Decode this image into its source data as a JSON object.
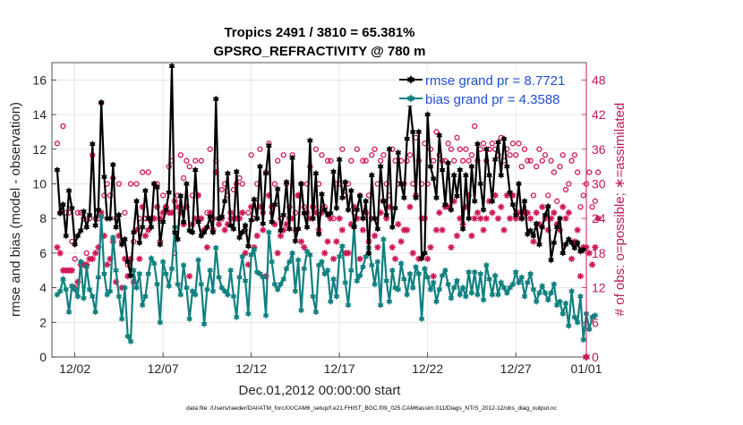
{
  "title_line1": "Tropics 2491 / 3810 = 65.381%",
  "title_line2": "GPSRO_REFRACTIVITY @ 780 m",
  "footer": "data file: /Users/raeder/DAI/ATM_forcXX/CAM6_setup/f.e21.FHIST_BGC.f09_025.CAM6assim.011/Diags_NTrS_2012-12/obs_diag_output.nc",
  "chart_data": {
    "type": "line",
    "title": "Tropics 2491 / 3810 = 65.381%",
    "subtitle": "GPSRO_REFRACTIVITY @ 780 m",
    "xlabel": "Dec.01,2012 00:00:00 start",
    "ylabel": "rmse and bias (model - observation)",
    "ylabel_right": "# of obs: o=possible; ∗=assimilated",
    "xlim": [
      0.7,
      31.0
    ],
    "ylim": [
      0,
      17
    ],
    "ylim_right": [
      0,
      51
    ],
    "x_tick_values": [
      2,
      7,
      12,
      17,
      22,
      27,
      31
    ],
    "x_tick_labels": [
      "12/02",
      "12/07",
      "12/12",
      "12/17",
      "12/22",
      "12/27",
      "01/01"
    ],
    "y_ticks": [
      0,
      2,
      4,
      6,
      8,
      10,
      12,
      14,
      16
    ],
    "y_ticks_right": [
      0,
      6,
      12,
      18,
      24,
      30,
      36,
      42,
      48
    ],
    "grid": true,
    "legend_position": "top-right",
    "colors": {
      "rmse": "#000000",
      "bias": "#118080",
      "obs": "#d1175a",
      "right_axis": "#c2185b",
      "legend_text": "#1f4fd6"
    },
    "series": [
      {
        "name": "rmse grand pr = 8.7721",
        "axis": "left",
        "marker": "hexagram",
        "values": [
          10.8,
          8.3,
          8.8,
          7.0,
          9.6,
          8.6,
          6.5,
          7.0,
          7.3,
          8.4,
          7.5,
          8.2,
          12.3,
          7.6,
          8.5,
          14.7,
          10.4,
          8.0,
          8.0,
          11.1,
          7.5,
          8.2,
          6.5,
          6.8,
          5.5,
          4.7,
          7.2,
          9.0,
          6.6,
          7.5,
          9.6,
          8.0,
          7.5,
          10.0,
          9.8,
          6.5,
          7.8,
          8.5,
          9.5,
          16.8,
          7.2,
          6.8,
          9.3,
          7.8,
          10.0,
          7.3,
          7.2,
          10.8,
          7.8,
          7.0,
          7.2,
          7.5,
          8.1,
          7.2,
          14.9,
          8.0,
          8.1,
          9.0,
          10.6,
          7.6,
          7.4,
          10.7,
          6.9,
          7.2,
          7.6,
          6.4,
          7.9,
          9.1,
          8.0,
          11.0,
          7.7,
          10.6,
          12.2,
          7.8,
          8.8,
          9.7,
          7.3,
          8.2,
          10.1,
          7.4,
          11.5,
          6.7,
          7.4,
          10.0,
          8.3,
          7.5,
          12.5,
          8.0,
          10.6,
          7.1,
          9.4,
          8.5,
          8.2,
          8.3,
          10.7,
          8.6,
          11.4,
          9.2,
          10.1,
          8.5,
          9.6,
          7.5,
          8.5,
          9.3,
          8.0,
          9.0,
          6.0,
          10.5,
          8.0,
          7.4,
          11.0,
          9.0,
          8.2,
          12.0,
          7.5,
          8.6,
          11.8,
          10.0,
          9.2,
          12.6,
          14.6,
          13.0,
          9.2,
          13.0,
          5.7,
          6.0,
          14.0,
          11.0,
          10.3,
          9.2,
          12.8,
          10.8,
          8.8,
          11.2,
          8.5,
          10.5,
          9.3,
          10.8,
          7.4,
          10.5,
          8.0,
          11.0,
          9.0,
          12.3,
          10.0,
          8.5,
          12.0,
          10.5,
          9.0,
          11.4,
          12.4,
          10.5,
          12.6,
          11.0,
          9.5,
          8.8,
          8.2,
          10.0,
          8.0,
          9.0,
          7.1,
          7.3,
          7.0,
          7.7,
          6.5,
          7.5,
          8.2,
          8.7,
          5.6,
          6.6,
          7.5,
          8.0,
          6.0,
          6.5,
          6.8,
          6.6,
          6.3,
          6.6,
          6.1,
          6.2
        ]
      },
      {
        "name": "bias grand pr = 4.3588",
        "axis": "left",
        "marker": "hexagram",
        "values": [
          3.6,
          3.8,
          4.5,
          3.9,
          2.6,
          4.1,
          3.9,
          3.5,
          5.5,
          3.4,
          5.2,
          3.9,
          3.5,
          2.6,
          4.6,
          8.1,
          4.8,
          3.6,
          3.8,
          6.9,
          5.0,
          3.5,
          2.2,
          4.0,
          1.2,
          0.9,
          5.0,
          4.0,
          4.8,
          3.0,
          3.5,
          4.8,
          5.7,
          5.4,
          4.2,
          2.0,
          5.5,
          4.8,
          4.1,
          5.1,
          7.5,
          4.2,
          3.6,
          5.3,
          4.0,
          2.2,
          3.8,
          3.6,
          5.6,
          4.2,
          1.9,
          3.9,
          5.0,
          3.8,
          6.3,
          4.6,
          4.0,
          3.8,
          3.6,
          5.0,
          3.5,
          2.3,
          4.6,
          5.8,
          4.4,
          2.5,
          5.9,
          6.2,
          4.9,
          4.8,
          4.6,
          2.4,
          7.2,
          5.5,
          4.2,
          3.9,
          4.2,
          4.5,
          5.1,
          5.5,
          6.0,
          3.8,
          5.6,
          2.7,
          5.1,
          6.1,
          5.9,
          3.5,
          2.6,
          5.3,
          5.5,
          4.8,
          5.0,
          3.2,
          4.5,
          3.5,
          5.8,
          6.4,
          4.3,
          3.0,
          5.0,
          7.6,
          4.4,
          4.7,
          5.2,
          5.8,
          6.3,
          5.3,
          4.2,
          5.5,
          3.0,
          6.8,
          4.4,
          3.2,
          5.0,
          4.0,
          3.9,
          5.4,
          4.5,
          3.6,
          4.8,
          4.0,
          5.2,
          4.8,
          2.2,
          5.1,
          4.6,
          3.9,
          4.3,
          3.2,
          3.9,
          4.7,
          5.0,
          4.2,
          3.4,
          4.0,
          4.4,
          3.6,
          4.0,
          3.5,
          4.9,
          3.7,
          4.9,
          3.6,
          4.8,
          3.3,
          5.3,
          4.5,
          3.6,
          4.7,
          3.6,
          4.3,
          4.0,
          3.7,
          4.0,
          4.2,
          4.9,
          4.3,
          4.6,
          3.5,
          4.3,
          4.8,
          3.9,
          3.2,
          3.7,
          4.1,
          3.7,
          3.3,
          3.7,
          4.2,
          3.0,
          3.2,
          2.5,
          3.1,
          1.8,
          3.8,
          2.3,
          2.0,
          3.5,
          1.0,
          2.5,
          1.6,
          2.3,
          2.4
        ]
      },
      {
        "name": "possible",
        "axis": "right",
        "marker": "circle",
        "values": [
          37,
          25,
          40,
          25,
          25,
          20,
          17,
          25,
          25,
          24,
          18,
          24,
          35,
          24,
          24,
          44,
          28,
          30,
          28,
          31,
          24,
          30,
          20,
          25,
          16,
          30,
          20,
          30,
          24,
          32,
          24,
          32,
          24,
          30,
          30,
          20,
          28,
          26,
          33,
          34,
          18,
          28,
          35,
          31,
          34,
          33,
          28,
          34,
          24,
          34,
          22,
          25,
          36,
          24,
          34,
          24,
          29,
          30,
          28,
          24,
          29,
          30,
          31,
          30,
          22,
          25,
          35,
          24,
          30,
          36,
          25,
          32,
          37,
          25,
          30,
          34,
          24,
          35,
          30,
          26,
          35,
          25,
          28,
          30,
          26,
          30,
          33,
          26,
          36,
          30,
          35,
          26,
          34,
          34,
          24,
          30,
          30,
          36,
          28,
          30,
          34,
          25,
          36,
          28,
          34,
          34,
          28,
          35,
          36,
          30,
          34,
          35,
          30,
          28,
          36,
          34,
          30,
          34,
          30,
          34,
          35,
          30,
          38,
          34,
          30,
          37,
          30,
          36,
          34,
          39,
          35,
          34,
          34,
          37,
          36,
          34,
          38,
          36,
          34,
          36,
          34,
          35,
          40,
          34,
          36,
          37,
          34,
          36,
          37,
          36,
          35,
          38,
          34,
          36,
          35,
          37,
          35,
          37,
          33,
          36,
          34,
          34,
          28,
          33,
          36,
          34,
          35,
          28,
          34,
          32,
          27,
          33,
          35,
          29,
          30,
          34,
          35,
          32,
          26,
          28,
          30,
          32,
          26,
          27,
          32
        ]
      },
      {
        "name": "assimilated",
        "axis": "right",
        "marker": "asterisk",
        "values": [
          19,
          18,
          15,
          15,
          15,
          15,
          12,
          13,
          16,
          16,
          16,
          17,
          17,
          18,
          19,
          25,
          21,
          16,
          17,
          20,
          13,
          21,
          12,
          17,
          14,
          17,
          13,
          22,
          17,
          26,
          21,
          22,
          24,
          24,
          26,
          24,
          25,
          26,
          25,
          25,
          27,
          26,
          25,
          23,
          26,
          14,
          23,
          24,
          28,
          24,
          22,
          19,
          25,
          22,
          32,
          23,
          24,
          22,
          23,
          25,
          24,
          24,
          24,
          25,
          18,
          16,
          26,
          19,
          21,
          26,
          22,
          14,
          28,
          26,
          23,
          18,
          21,
          22,
          23,
          24,
          24,
          22,
          28,
          20,
          19,
          25,
          24,
          26,
          25,
          22,
          25,
          18,
          20,
          24,
          17,
          20,
          24,
          22,
          18,
          18,
          23,
          26,
          24,
          17,
          22,
          25,
          20,
          24,
          21,
          19,
          25,
          27,
          24,
          26,
          19,
          17,
          23,
          20,
          22,
          22,
          26,
          18,
          28,
          17,
          24,
          24,
          17,
          19,
          14,
          22,
          25,
          22,
          26,
          26,
          19,
          27,
          21,
          24,
          23,
          26,
          28,
          21,
          24,
          25,
          24,
          22,
          24,
          27,
          25,
          28,
          24,
          26,
          22,
          28,
          24,
          28,
          24,
          25,
          24,
          25,
          25,
          24,
          20,
          25,
          23,
          26,
          24,
          22,
          24,
          25,
          23,
          22,
          26,
          24,
          25,
          17,
          20,
          22,
          14,
          19,
          19,
          18,
          16,
          19,
          24
        ]
      }
    ]
  }
}
